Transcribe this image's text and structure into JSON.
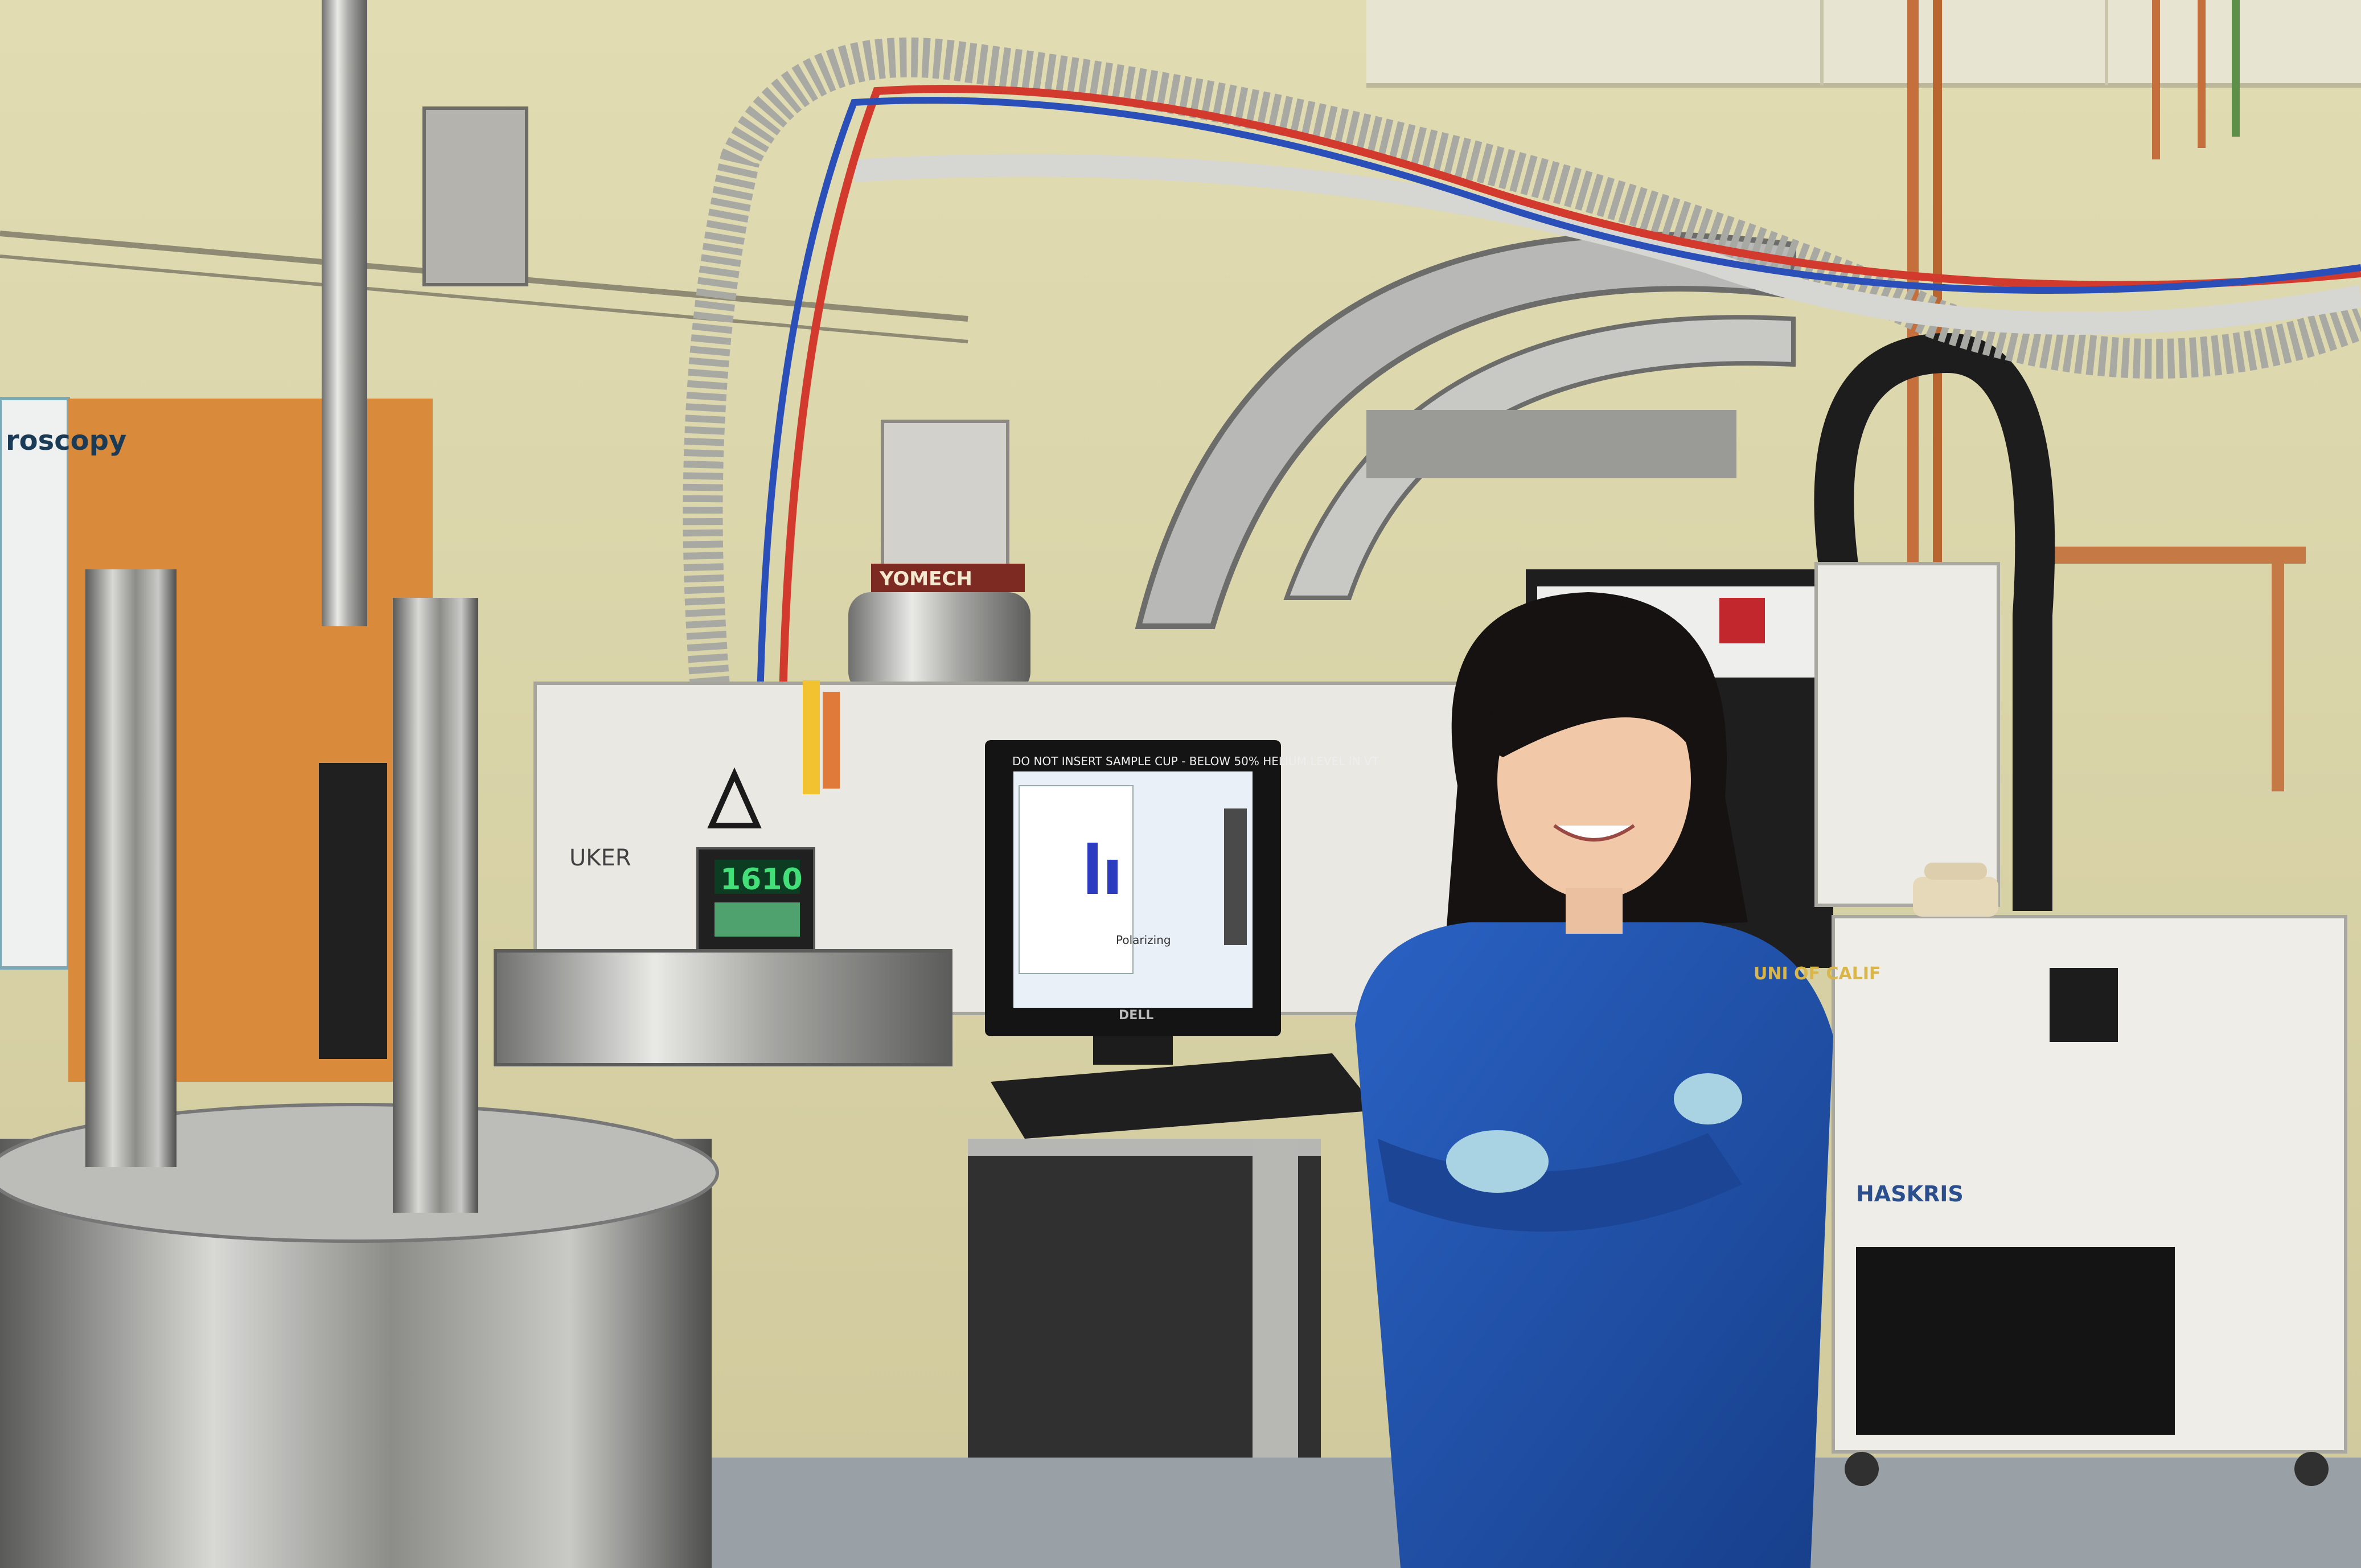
{
  "scene": {
    "kind": "photograph",
    "subject": "researcher in blue lab coat standing in an NMR / cryogenics laboratory"
  },
  "visible_text": {
    "wall_sign": "roscopy",
    "controller_display": "1610",
    "monitor_banner": "DO NOT INSERT SAMPLE CUP - BELOW 50% HELIUM LEVEL IN VT",
    "monitor_status": "Polarizing",
    "monitor_brand": "DELL",
    "cryo_label": "YOMECH",
    "magnet_label": "UKER",
    "chiller_brand": "HASKRIS",
    "coat_text": "UNI OF CALIF"
  },
  "colors": {
    "wall": "#d9d3a6",
    "coat": "#1f4fa6",
    "chiller": "#eeede7",
    "steel": "#b8b8b6",
    "controller_digits": "#43e07a",
    "monitor_screen": "#eaf0f8"
  }
}
